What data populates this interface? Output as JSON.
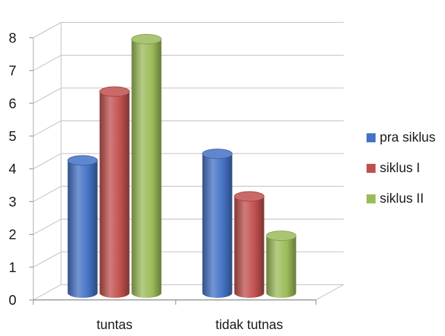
{
  "chart_data": {
    "type": "bar",
    "style": "3d-cylinder",
    "categories": [
      "tuntas",
      "tidak tutnas"
    ],
    "series": [
      {
        "name": "pra siklus",
        "values": [
          4.3,
          4.5
        ],
        "color": "#4472C4"
      },
      {
        "name": "siklus I",
        "values": [
          6.4,
          3.2
        ],
        "color": "#C0504D"
      },
      {
        "name": "siklus II",
        "values": [
          8,
          2
        ],
        "color": "#9BBB59"
      }
    ],
    "yticks": [
      "0",
      "1",
      "2",
      "3",
      "4",
      "5",
      "6",
      "7",
      "8"
    ],
    "ylim": [
      0,
      8
    ],
    "grid": true,
    "legend_position": "right"
  }
}
